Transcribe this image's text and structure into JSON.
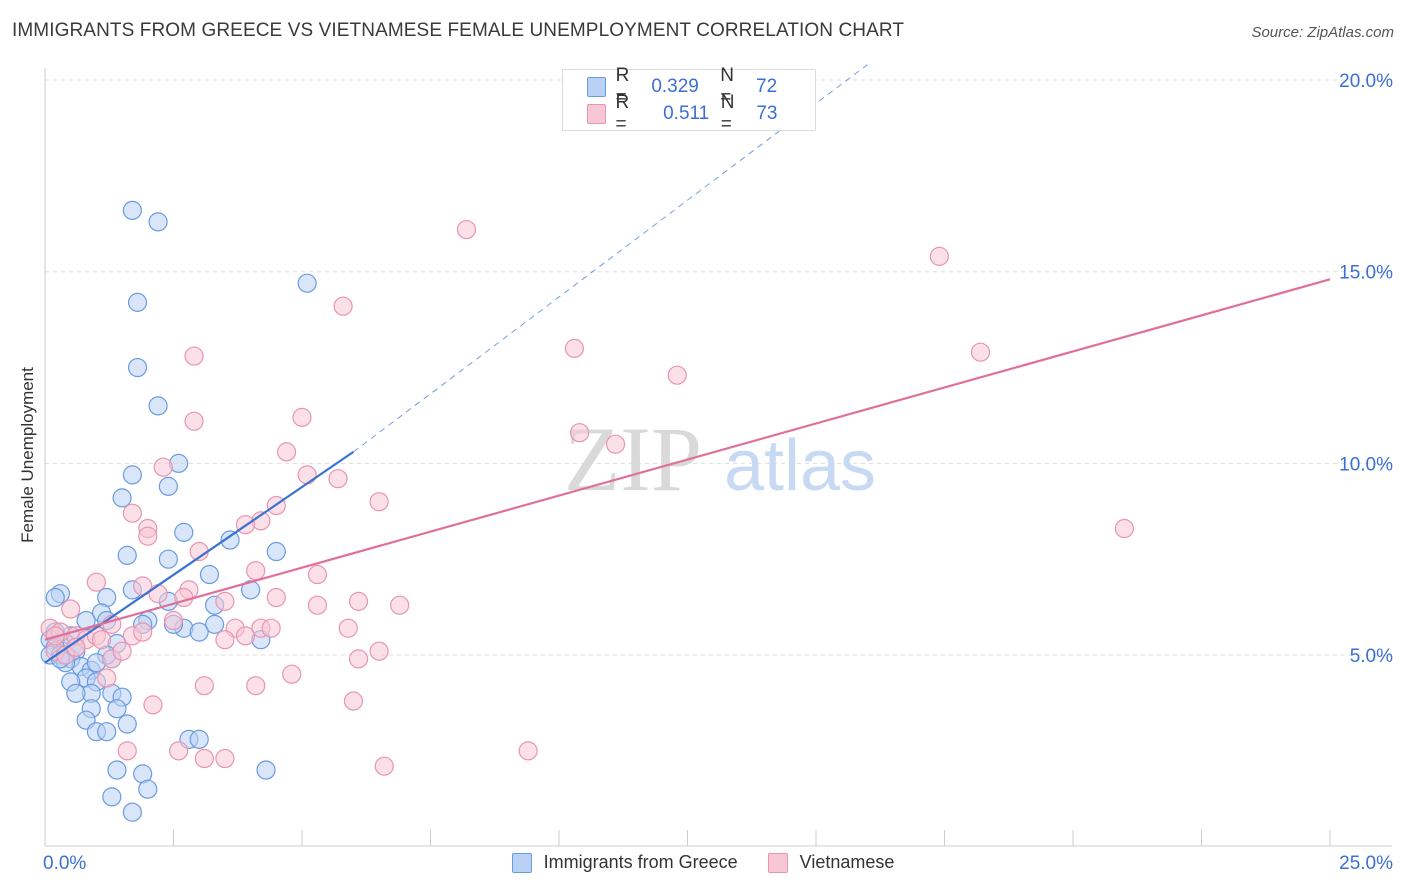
{
  "title": "IMMIGRANTS FROM GREECE VS VIETNAMESE FEMALE UNEMPLOYMENT CORRELATION CHART",
  "source": "Source: ZipAtlas.com",
  "watermark": {
    "zip": "ZIP",
    "atlas": "atlas"
  },
  "legend": {
    "series1": {
      "r_label": "R =",
      "r_value": "0.329",
      "n_label": "N =",
      "n_value": "72"
    },
    "series2": {
      "r_label": "R =",
      "r_value": "0.511",
      "n_label": "N =",
      "n_value": "73"
    }
  },
  "colors": {
    "blue_fill": "#b9d1f4",
    "blue_stroke": "#6a9be0",
    "blue_line": "#3a74d0",
    "pink_fill": "#f8c7d6",
    "pink_stroke": "#e895b0",
    "pink_line": "#e07098",
    "tick_text": "#3b6fd4",
    "grid": "#dddddd"
  },
  "chart_data": {
    "type": "scatter",
    "title": "IMMIGRANTS FROM GREECE VS VIETNAMESE FEMALE UNEMPLOYMENT CORRELATION CHART",
    "xlabel": "",
    "ylabel": "Female Unemployment",
    "xlim": [
      0,
      25
    ],
    "ylim": [
      0,
      20
    ],
    "x_tick_labels": [
      "0.0%",
      "25.0%"
    ],
    "y_ticks": [
      5,
      10,
      15,
      20
    ],
    "y_tick_labels": [
      "5.0%",
      "10.0%",
      "15.0%",
      "20.0%"
    ],
    "legend_labels": [
      "Immigrants from Greece",
      "Vietnamese"
    ],
    "series": [
      {
        "name": "Immigrants from Greece",
        "r": 0.329,
        "n": 72,
        "trend": {
          "x0": 0.0,
          "y0": 4.8,
          "x1": 6.0,
          "y1": 10.3,
          "dash_to_x": 16.0,
          "dash_to_y": 20.4
        },
        "points": [
          [
            1.7,
            16.6
          ],
          [
            2.2,
            16.3
          ],
          [
            5.1,
            14.7
          ],
          [
            1.8,
            14.2
          ],
          [
            1.8,
            12.5
          ],
          [
            2.2,
            11.5
          ],
          [
            2.6,
            10.0
          ],
          [
            2.4,
            9.4
          ],
          [
            1.7,
            9.7
          ],
          [
            1.5,
            9.1
          ],
          [
            2.7,
            8.2
          ],
          [
            3.6,
            8.0
          ],
          [
            4.5,
            7.7
          ],
          [
            1.6,
            7.6
          ],
          [
            2.4,
            7.5
          ],
          [
            3.2,
            7.1
          ],
          [
            1.2,
            6.5
          ],
          [
            1.7,
            6.7
          ],
          [
            2.4,
            6.4
          ],
          [
            0.3,
            6.6
          ],
          [
            2.0,
            5.9
          ],
          [
            2.7,
            5.7
          ],
          [
            1.1,
            6.1
          ],
          [
            1.2,
            5.9
          ],
          [
            3.3,
            5.8
          ],
          [
            0.8,
            5.9
          ],
          [
            1.4,
            5.3
          ],
          [
            0.5,
            5.5
          ],
          [
            0.2,
            5.6
          ],
          [
            0.4,
            5.3
          ],
          [
            0.6,
            5.1
          ],
          [
            0.1,
            5.4
          ],
          [
            0.2,
            5.2
          ],
          [
            0.1,
            5.0
          ],
          [
            0.3,
            5.0
          ],
          [
            0.5,
            4.9
          ],
          [
            0.7,
            4.7
          ],
          [
            0.9,
            4.6
          ],
          [
            0.4,
            4.8
          ],
          [
            0.6,
            5.2
          ],
          [
            1.3,
            4.9
          ],
          [
            1.2,
            5.0
          ],
          [
            0.8,
            4.4
          ],
          [
            1.0,
            4.3
          ],
          [
            0.9,
            4.0
          ],
          [
            0.5,
            4.3
          ],
          [
            0.6,
            4.0
          ],
          [
            1.3,
            4.0
          ],
          [
            1.5,
            3.9
          ],
          [
            1.4,
            3.6
          ],
          [
            0.9,
            3.6
          ],
          [
            0.8,
            3.3
          ],
          [
            1.0,
            3.0
          ],
          [
            1.2,
            3.0
          ],
          [
            1.6,
            3.2
          ],
          [
            2.8,
            2.8
          ],
          [
            3.0,
            2.8
          ],
          [
            1.4,
            2.0
          ],
          [
            1.9,
            1.9
          ],
          [
            2.0,
            1.5
          ],
          [
            1.3,
            1.3
          ],
          [
            1.7,
            0.9
          ],
          [
            4.3,
            2.0
          ],
          [
            3.0,
            5.6
          ],
          [
            4.0,
            6.7
          ],
          [
            4.2,
            5.4
          ],
          [
            3.3,
            6.3
          ],
          [
            1.9,
            5.8
          ],
          [
            2.5,
            5.8
          ],
          [
            1.0,
            4.8
          ],
          [
            0.3,
            4.9
          ],
          [
            0.2,
            6.5
          ]
        ]
      },
      {
        "name": "Vietnamese",
        "r": 0.511,
        "n": 73,
        "trend": {
          "x0": 0.0,
          "y0": 5.4,
          "x1": 25.0,
          "y1": 14.8
        },
        "points": [
          [
            8.2,
            16.1
          ],
          [
            17.4,
            15.4
          ],
          [
            5.8,
            14.1
          ],
          [
            10.3,
            13.0
          ],
          [
            18.2,
            12.9
          ],
          [
            2.9,
            12.8
          ],
          [
            12.3,
            12.3
          ],
          [
            2.9,
            11.1
          ],
          [
            5.0,
            11.2
          ],
          [
            10.4,
            10.8
          ],
          [
            11.1,
            10.5
          ],
          [
            4.7,
            10.3
          ],
          [
            2.3,
            9.9
          ],
          [
            5.1,
            9.7
          ],
          [
            5.7,
            9.6
          ],
          [
            6.5,
            9.0
          ],
          [
            4.5,
            8.9
          ],
          [
            1.7,
            8.7
          ],
          [
            4.2,
            8.5
          ],
          [
            3.9,
            8.4
          ],
          [
            2.0,
            8.3
          ],
          [
            2.0,
            8.1
          ],
          [
            21.0,
            8.3
          ],
          [
            3.0,
            7.7
          ],
          [
            4.1,
            7.2
          ],
          [
            5.3,
            7.1
          ],
          [
            1.0,
            6.9
          ],
          [
            1.9,
            6.8
          ],
          [
            2.8,
            6.7
          ],
          [
            2.2,
            6.6
          ],
          [
            2.7,
            6.5
          ],
          [
            4.5,
            6.5
          ],
          [
            3.5,
            6.4
          ],
          [
            5.3,
            6.3
          ],
          [
            6.1,
            6.4
          ],
          [
            6.9,
            6.3
          ],
          [
            0.5,
            6.2
          ],
          [
            1.3,
            5.8
          ],
          [
            0.1,
            5.7
          ],
          [
            0.3,
            5.6
          ],
          [
            0.6,
            5.5
          ],
          [
            0.8,
            5.4
          ],
          [
            1.0,
            5.5
          ],
          [
            1.7,
            5.5
          ],
          [
            3.7,
            5.7
          ],
          [
            4.2,
            5.7
          ],
          [
            4.4,
            5.7
          ],
          [
            5.9,
            5.7
          ],
          [
            3.9,
            5.5
          ],
          [
            3.5,
            5.4
          ],
          [
            6.5,
            5.1
          ],
          [
            6.1,
            4.9
          ],
          [
            1.3,
            4.9
          ],
          [
            1.5,
            5.1
          ],
          [
            0.2,
            5.1
          ],
          [
            0.4,
            5.0
          ],
          [
            1.2,
            4.4
          ],
          [
            3.1,
            4.2
          ],
          [
            4.1,
            4.2
          ],
          [
            4.8,
            4.5
          ],
          [
            6.0,
            3.8
          ],
          [
            2.1,
            3.7
          ],
          [
            2.6,
            2.5
          ],
          [
            3.1,
            2.3
          ],
          [
            3.5,
            2.3
          ],
          [
            1.6,
            2.5
          ],
          [
            6.6,
            2.1
          ],
          [
            9.4,
            2.5
          ],
          [
            0.6,
            5.2
          ],
          [
            1.1,
            5.4
          ],
          [
            2.5,
            5.9
          ],
          [
            0.2,
            5.5
          ],
          [
            1.9,
            5.6
          ]
        ]
      }
    ]
  }
}
